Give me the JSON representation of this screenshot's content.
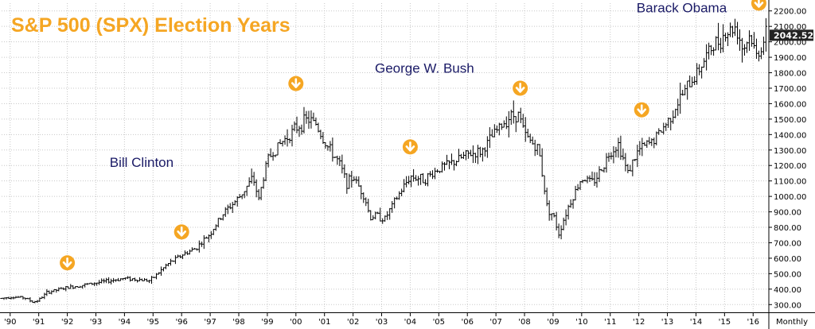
{
  "colors": {
    "accent": "#f5a623",
    "annotation": "#1a1a66",
    "bars": "#000000",
    "grid": "#c8c8c8",
    "price_box_bg": "#222222"
  },
  "chart_data": {
    "type": "bar",
    "title": "S&P 500 (SPX) Election Years",
    "frequency_label": "Monthly",
    "last_price_label": "2042.52",
    "last_price": 2042.52,
    "ylim": [
      250,
      2250
    ],
    "grid": true,
    "y_axis_position": "right",
    "y_ticks": [
      300,
      400,
      500,
      600,
      700,
      800,
      900,
      1000,
      1100,
      1200,
      1300,
      1400,
      1500,
      1600,
      1700,
      1800,
      1900,
      2000,
      2100,
      2200
    ],
    "y_tick_labels": [
      "300.00",
      "400.00",
      "500.00",
      "600.00",
      "700.00",
      "800.00",
      "900.00",
      "1000.00",
      "1100.00",
      "1200.00",
      "1300.00",
      "1400.00",
      "1500.00",
      "1600.00",
      "1700.00",
      "1800.00",
      "1900.00",
      "2000.00",
      "2100.00",
      "2200.00"
    ],
    "x_ticks": [
      "'90",
      "'91",
      "'92",
      "'93",
      "'94",
      "'95",
      "'96",
      "'97",
      "'98",
      "'99",
      "'00",
      "'01",
      "'02",
      "'03",
      "'04",
      "'05",
      "'06",
      "'07",
      "'08",
      "'09",
      "'10",
      "'11",
      "'12",
      "'13",
      "'14",
      "'15",
      "'16"
    ],
    "x_tick_years": [
      1990,
      1991,
      1992,
      1993,
      1994,
      1995,
      1996,
      1997,
      1998,
      1999,
      2000,
      2001,
      2002,
      2003,
      2004,
      2005,
      2006,
      2007,
      2008,
      2009,
      2010,
      2011,
      2012,
      2013,
      2014,
      2015,
      2016
    ],
    "xlim": [
      1989.7,
      2016.55
    ],
    "price_anchors": [
      [
        1989.7,
        340
      ],
      [
        1990.0,
        350
      ],
      [
        1990.5,
        345
      ],
      [
        1990.8,
        315
      ],
      [
        1991.0,
        330
      ],
      [
        1991.3,
        380
      ],
      [
        1992.0,
        410
      ],
      [
        1993.0,
        440
      ],
      [
        1994.0,
        470
      ],
      [
        1994.9,
        455
      ],
      [
        1995.5,
        560
      ],
      [
        1996.0,
        620
      ],
      [
        1996.5,
        665
      ],
      [
        1997.0,
        760
      ],
      [
        1997.5,
        900
      ],
      [
        1998.0,
        990
      ],
      [
        1998.5,
        1120
      ],
      [
        1998.7,
        980
      ],
      [
        1999.0,
        1240
      ],
      [
        1999.5,
        1350
      ],
      [
        2000.0,
        1440
      ],
      [
        2000.4,
        1500
      ],
      [
        2000.7,
        1470
      ],
      [
        2001.0,
        1350
      ],
      [
        2001.5,
        1220
      ],
      [
        2001.8,
        1080
      ],
      [
        2002.0,
        1130
      ],
      [
        2002.4,
        1000
      ],
      [
        2002.6,
        860
      ],
      [
        2002.8,
        880
      ],
      [
        2003.1,
        850
      ],
      [
        2003.5,
        980
      ],
      [
        2004.0,
        1130
      ],
      [
        2004.5,
        1110
      ],
      [
        2005.0,
        1180
      ],
      [
        2005.5,
        1220
      ],
      [
        2006.0,
        1270
      ],
      [
        2006.5,
        1290
      ],
      [
        2007.0,
        1420
      ],
      [
        2007.5,
        1520
      ],
      [
        2007.8,
        1530
      ],
      [
        2008.0,
        1400
      ],
      [
        2008.5,
        1300
      ],
      [
        2008.8,
        920
      ],
      [
        2009.0,
        880
      ],
      [
        2009.2,
        760
      ],
      [
        2009.5,
        920
      ],
      [
        2010.0,
        1120
      ],
      [
        2010.4,
        1090
      ],
      [
        2010.7,
        1180
      ],
      [
        2011.0,
        1290
      ],
      [
        2011.3,
        1340
      ],
      [
        2011.6,
        1150
      ],
      [
        2012.0,
        1300
      ],
      [
        2012.5,
        1360
      ],
      [
        2013.0,
        1480
      ],
      [
        2013.5,
        1650
      ],
      [
        2014.0,
        1790
      ],
      [
        2014.5,
        1950
      ],
      [
        2015.0,
        2050
      ],
      [
        2015.4,
        2100
      ],
      [
        2015.65,
        1950
      ],
      [
        2015.9,
        2050
      ],
      [
        2016.1,
        1900
      ],
      [
        2016.45,
        2040
      ]
    ],
    "election_years": [
      1992,
      1996,
      2000,
      2004,
      2008,
      2012,
      2016
    ],
    "election_markers": [
      {
        "year": 1992,
        "price": 570
      },
      {
        "year": 1996,
        "price": 770
      },
      {
        "year": 2000,
        "price": 1730
      },
      {
        "year": 2004,
        "price": 1320
      },
      {
        "year": 2007.85,
        "price": 1700
      },
      {
        "year": 2012.1,
        "price": 1560
      },
      {
        "year": 2016.2,
        "price": 2250
      }
    ],
    "annotations": [
      {
        "text": "Bill Clinton",
        "year": 1994.6,
        "price": 1190
      },
      {
        "text": "George W. Bush",
        "year": 2004.5,
        "price": 1800
      },
      {
        "text": "Barack Obama",
        "year": 2013.5,
        "price": 2190
      }
    ]
  }
}
